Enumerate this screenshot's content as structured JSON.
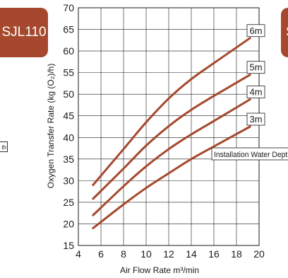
{
  "badge": {
    "text": "SJL110"
  },
  "badge_right": {
    "text": "S"
  },
  "left_fragment": {
    "text": "th"
  },
  "colors": {
    "series": "#a5482d",
    "badge": "#a5482d",
    "grid": "#1a1a1a"
  },
  "chart_data": {
    "type": "line",
    "title": "",
    "xlabel": "Air Flow Rate m³/min",
    "ylabel": "Oxygen Transfer Rate (kg (O₂)/h)",
    "xlim": [
      4,
      20
    ],
    "ylim": [
      15,
      70
    ],
    "xticks": [
      4,
      6,
      8,
      10,
      12,
      14,
      16,
      18,
      20
    ],
    "yticks": [
      15,
      20,
      25,
      30,
      35,
      40,
      45,
      50,
      55,
      60,
      65,
      70
    ],
    "grid": true,
    "annotation": "Installation Water Depth",
    "series": [
      {
        "name": "6m",
        "x": [
          5.3,
          8,
          10,
          12,
          14,
          16,
          19.2
        ],
        "y": [
          29,
          37.3,
          43.5,
          49,
          53.5,
          57.2,
          63
        ]
      },
      {
        "name": "5m",
        "x": [
          5.3,
          8,
          10,
          12,
          14,
          16,
          19.2
        ],
        "y": [
          25.8,
          32.8,
          38.1,
          42.6,
          46.4,
          49.6,
          54.5
        ]
      },
      {
        "name": "4m",
        "x": [
          5.3,
          8,
          10,
          12,
          14,
          16,
          19.2
        ],
        "y": [
          22,
          28.7,
          33.3,
          37.3,
          40.7,
          43.8,
          48.8
        ]
      },
      {
        "name": "3m",
        "x": [
          5.3,
          8,
          10,
          12,
          14,
          16,
          19.2
        ],
        "y": [
          19,
          24.5,
          28.3,
          31.7,
          35,
          37.9,
          42.5
        ]
      }
    ]
  }
}
